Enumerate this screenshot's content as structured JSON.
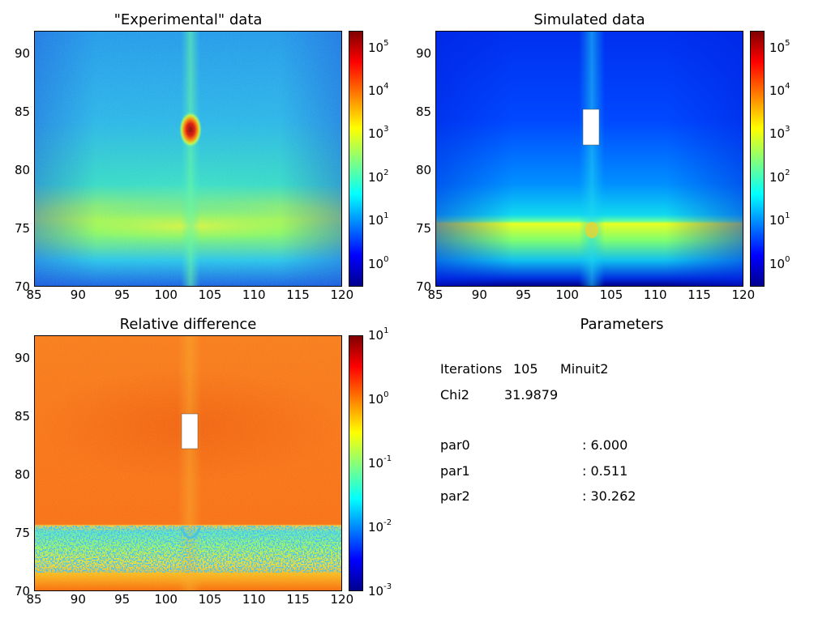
{
  "panels": [
    {
      "id": "experimental",
      "title": "\"Experimental\" data",
      "x_ticks": [
        "85",
        "90",
        "95",
        "100",
        "105",
        "110",
        "115",
        "120"
      ],
      "y_ticks": [
        "70",
        "75",
        "80",
        "85",
        "90"
      ],
      "colorbar": {
        "base": "10",
        "exponents": [
          "0",
          "1",
          "2",
          "3",
          "4",
          "5"
        ]
      }
    },
    {
      "id": "simulated",
      "title": "Simulated data",
      "x_ticks": [
        "85",
        "90",
        "95",
        "100",
        "105",
        "110",
        "115",
        "120"
      ],
      "y_ticks": [
        "70",
        "75",
        "80",
        "85",
        "90"
      ],
      "colorbar": {
        "base": "10",
        "exponents": [
          "0",
          "1",
          "2",
          "3",
          "4",
          "5"
        ]
      }
    },
    {
      "id": "relative-difference",
      "title": "Relative difference",
      "x_ticks": [
        "85",
        "90",
        "95",
        "100",
        "105",
        "110",
        "115",
        "120"
      ],
      "y_ticks": [
        "70",
        "75",
        "80",
        "85",
        "90"
      ],
      "colorbar": {
        "base": "10",
        "exponents": [
          "1",
          "0",
          "-1",
          "-2",
          "-3"
        ]
      }
    }
  ],
  "parameters": {
    "title": "Parameters",
    "iterations_label": "Iterations",
    "iterations_value": "105",
    "minimizer": "Minuit2",
    "chi2_label": "Chi2",
    "chi2_value": "31.9879",
    "params": [
      {
        "name": "par0",
        "value": ":  6.000"
      },
      {
        "name": "par1",
        "value": ":  0.511"
      },
      {
        "name": "par2",
        "value": ": 30.262"
      }
    ]
  },
  "chart_data": [
    {
      "type": "heatmap",
      "title": "\"Experimental\" data",
      "xlim": [
        85,
        120
      ],
      "ylim": [
        70,
        92
      ],
      "color_scale": "log",
      "colorbar_range": [
        0.3,
        250000
      ],
      "colormap": "jet",
      "features": {
        "bright_spot": {
          "x": 102.8,
          "y": 83.5,
          "approx_value": 100000
        },
        "horizon_band_y": 75,
        "vertical_streak_x": 102.8
      }
    },
    {
      "type": "heatmap",
      "title": "Simulated data",
      "xlim": [
        85,
        120
      ],
      "ylim": [
        70,
        92
      ],
      "color_scale": "log",
      "colorbar_range": [
        0.3,
        250000
      ],
      "colormap": "jet",
      "masked_region": {
        "x": [
          102,
          104
        ],
        "y": [
          82,
          85.2
        ]
      },
      "features": {
        "horizon_band_y": 75.5,
        "vertical_streak_x": 102.8
      }
    },
    {
      "type": "heatmap",
      "title": "Relative difference",
      "xlim": [
        85,
        120
      ],
      "ylim": [
        70,
        92
      ],
      "color_scale": "log",
      "colorbar_range": [
        0.001,
        10
      ],
      "colormap": "jet",
      "masked_region": {
        "x": [
          102,
          104
        ],
        "y": [
          82,
          85.2
        ]
      }
    }
  ]
}
